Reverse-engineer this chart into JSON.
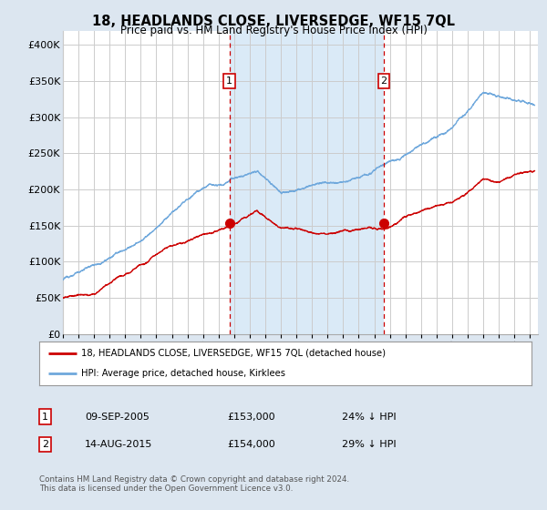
{
  "title": "18, HEADLANDS CLOSE, LIVERSEDGE, WF15 7QL",
  "subtitle": "Price paid vs. HM Land Registry's House Price Index (HPI)",
  "ylim": [
    0,
    420000
  ],
  "xlim_start": 1995.0,
  "xlim_end": 2025.5,
  "sale1_date": 2005.69,
  "sale1_price": 153000,
  "sale1_label": "1",
  "sale2_date": 2015.62,
  "sale2_price": 154000,
  "sale2_label": "2",
  "legend_line1": "18, HEADLANDS CLOSE, LIVERSEDGE, WF15 7QL (detached house)",
  "legend_line2": "HPI: Average price, detached house, Kirklees",
  "table_row1": [
    "1",
    "09-SEP-2005",
    "£153,000",
    "24% ↓ HPI"
  ],
  "table_row2": [
    "2",
    "14-AUG-2015",
    "£154,000",
    "29% ↓ HPI"
  ],
  "footnote": "Contains HM Land Registry data © Crown copyright and database right 2024.\nThis data is licensed under the Open Government Licence v3.0.",
  "hpi_color": "#6fa8dc",
  "sale_color": "#cc0000",
  "vline_color": "#cc0000",
  "bg_color": "#dce6f0",
  "plot_bg": "#ffffff",
  "shade_color": "#daeaf7",
  "grid_color": "#cccccc"
}
